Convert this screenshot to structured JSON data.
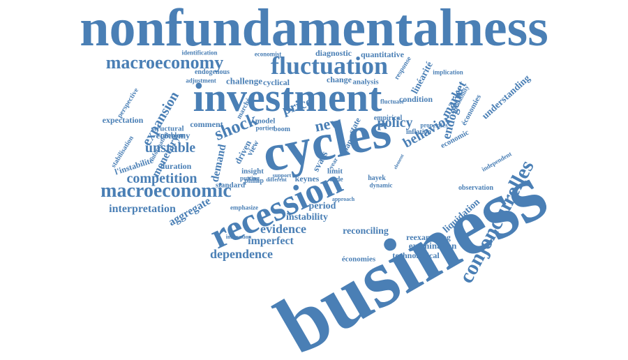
{
  "style": {
    "word_color": "#4a7fb5",
    "background": "#ffffff"
  },
  "words": [
    "nonfundamentalness",
    "business",
    "cycles",
    "investment",
    "recession",
    "fluctuation",
    "macroeconomy",
    "macroeconomic",
    "conjoncturelles",
    "shock",
    "competition",
    "unstable",
    "expansion",
    "monetary",
    "aggregate",
    "demand",
    "price",
    "new",
    "policy",
    "behavior",
    "market",
    "endogène",
    "evidence",
    "imperfect",
    "dependence",
    "interpretation",
    "instability",
    "reconciling",
    "period",
    "examination",
    "reexamining",
    "liquidation",
    "technological",
    "économies",
    "keynes",
    "hayek",
    "understanding",
    "économies",
    "linéarité",
    "condition",
    "economy",
    "structural",
    "problem",
    "comment",
    "expectation",
    "l'instabilité",
    "duration",
    "insight",
    "phillip",
    "standard",
    "putting",
    "different",
    "support",
    "emphasize",
    "innovation",
    "challenge",
    "cyclical",
    "change",
    "analysis",
    "model",
    "portier",
    "boom",
    "diagnostic",
    "quantitative",
    "economist",
    "identification",
    "endogenous",
    "adjustment",
    "implication",
    "inflation",
    "economic",
    "independent",
    "observation",
    "limit",
    "code",
    "year",
    "svars",
    "driven",
    "view",
    "state",
    "paper",
    "stabilisation",
    "perspective",
    "information",
    "marché",
    "empirical",
    "fluctuate",
    "response",
    "properties",
    "probability",
    "approach",
    "dynamic",
    "element"
  ]
}
